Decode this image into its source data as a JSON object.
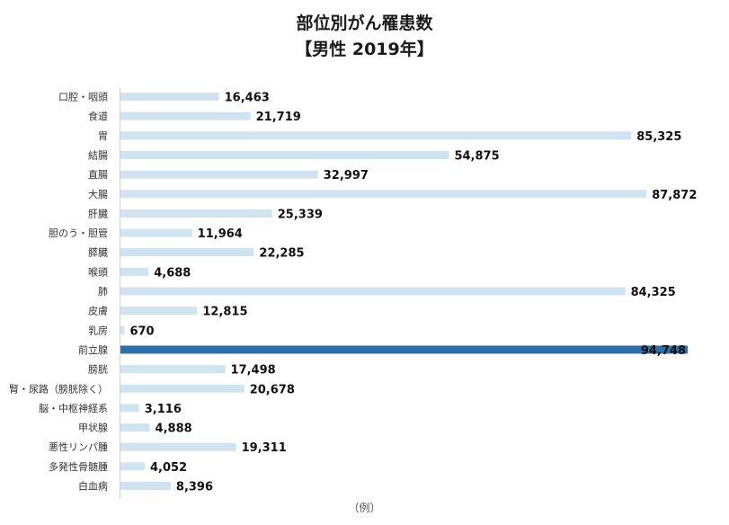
{
  "chart_data": {
    "type": "bar",
    "orientation": "horizontal",
    "title": "部位別がん罹患数",
    "subtitle": "【男性 2019年】",
    "xlabel": "（例）",
    "ylabel": "",
    "xlim": [
      0,
      95000
    ],
    "grid": false,
    "legend": "none",
    "colors": {
      "bar": "#cfe3f1",
      "highlight": "#2e6fa7"
    },
    "highlight_category": "前立腺",
    "categories": [
      "口腔・咽頭",
      "食道",
      "胃",
      "結腸",
      "直腸",
      "大腸",
      "肝臓",
      "胆のう・胆管",
      "膵臓",
      "喉頭",
      "肺",
      "皮膚",
      "乳房",
      "前立腺",
      "膀胱",
      "腎・尿路（膀胱除く）",
      "脳・中枢神経系",
      "甲状腺",
      "悪性リンパ腫",
      "多発性骨髄腫",
      "白血病"
    ],
    "values": [
      16463,
      21719,
      85325,
      54875,
      32997,
      87872,
      25339,
      11964,
      22285,
      4688,
      84325,
      12815,
      670,
      94748,
      17498,
      20678,
      3116,
      4888,
      19311,
      4052,
      8396
    ],
    "value_labels": [
      "16,463",
      "21,719",
      "85,325",
      "54,875",
      "32,997",
      "87,872",
      "25,339",
      "11,964",
      "22,285",
      "4,688",
      "84,325",
      "12,815",
      "670",
      "94,748",
      "17,498",
      "20,678",
      "3,116",
      "4,888",
      "19,311",
      "4,052",
      "8,396"
    ]
  }
}
